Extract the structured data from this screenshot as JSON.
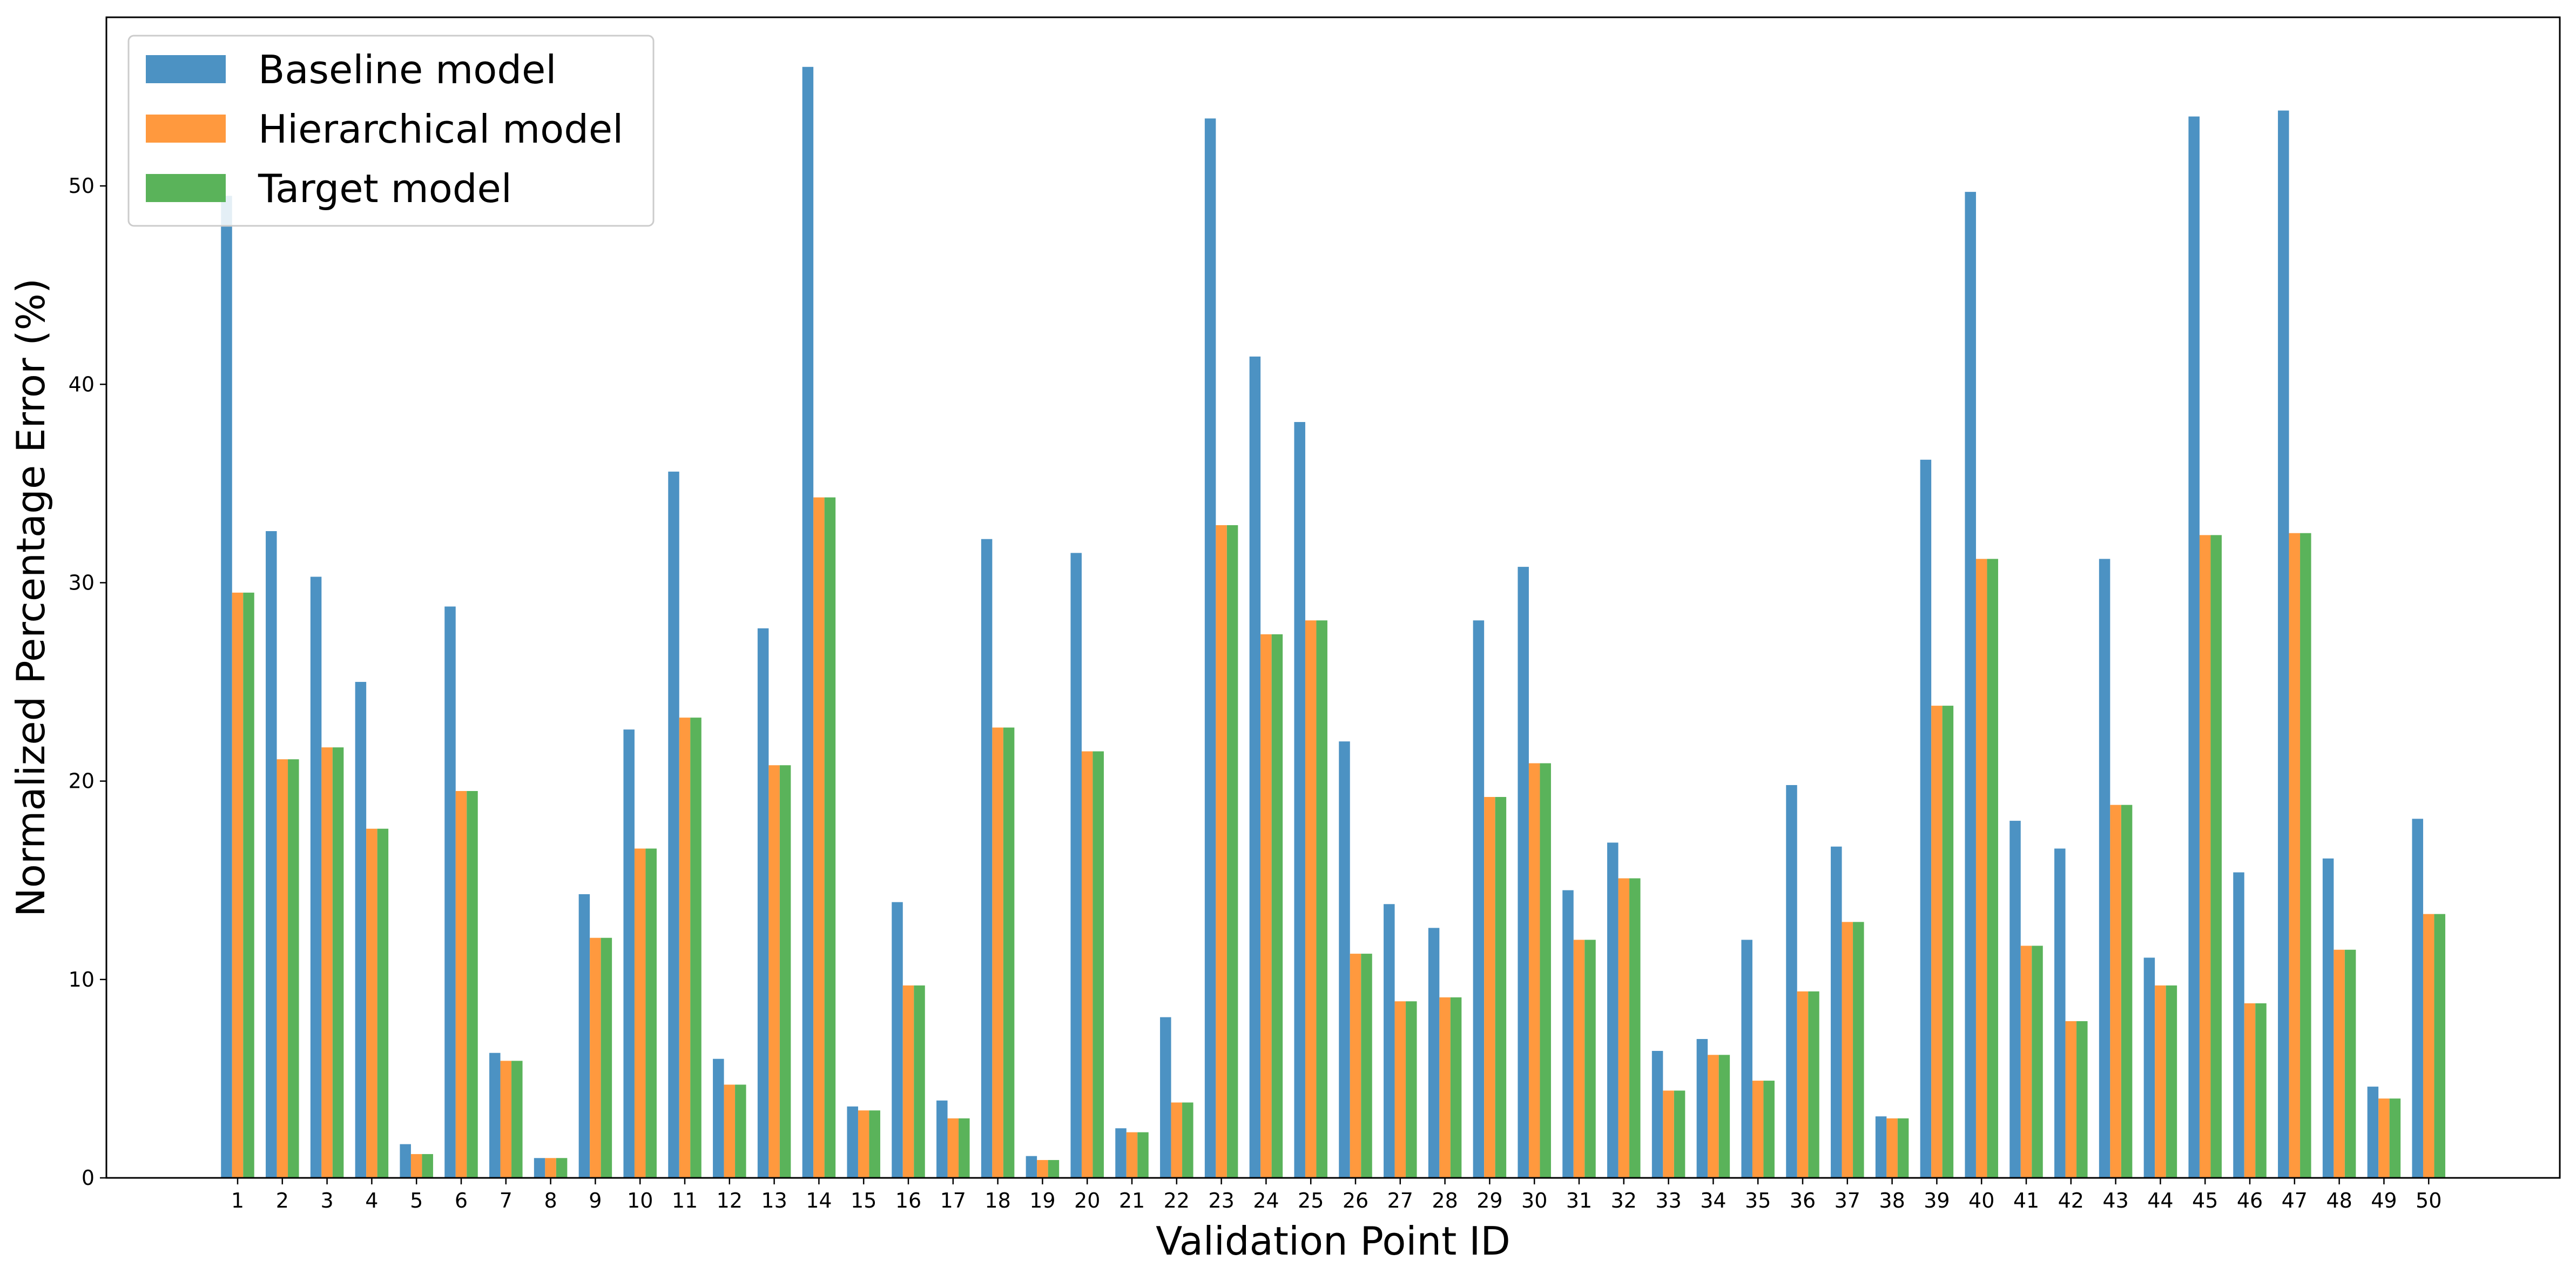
{
  "chart_data": {
    "type": "bar",
    "xlabel": "Validation Point ID",
    "ylabel": "Normalized Percentage Error (%)",
    "ylim": [
      0,
      58.5
    ],
    "yticks": [
      0,
      10,
      20,
      30,
      40,
      50
    ],
    "grid": false,
    "legend_position": "top-left",
    "categories": [
      "1",
      "2",
      "3",
      "4",
      "5",
      "6",
      "7",
      "8",
      "9",
      "10",
      "11",
      "12",
      "13",
      "14",
      "15",
      "16",
      "17",
      "18",
      "19",
      "20",
      "21",
      "22",
      "23",
      "24",
      "25",
      "26",
      "27",
      "28",
      "29",
      "30",
      "31",
      "32",
      "33",
      "34",
      "35",
      "36",
      "37",
      "38",
      "39",
      "40",
      "41",
      "42",
      "43",
      "44",
      "45",
      "46",
      "47",
      "48",
      "49",
      "50"
    ],
    "series": [
      {
        "name": "Baseline model",
        "color": "#4C92C3",
        "values": [
          49.5,
          32.6,
          30.3,
          25.0,
          1.7,
          28.8,
          6.3,
          1.0,
          14.3,
          22.6,
          35.6,
          6.0,
          27.7,
          56.0,
          3.6,
          13.9,
          3.9,
          32.2,
          1.1,
          31.5,
          2.5,
          8.1,
          53.4,
          41.4,
          38.1,
          22.0,
          13.8,
          12.6,
          28.1,
          30.8,
          14.5,
          16.9,
          6.4,
          7.0,
          12.0,
          19.8,
          16.7,
          3.1,
          36.2,
          49.7,
          18.0,
          16.6,
          31.2,
          11.1,
          53.5,
          15.4,
          53.8,
          16.1,
          4.6,
          18.1
        ]
      },
      {
        "name": "Hierarchical model",
        "color": "#FF993E",
        "values": [
          29.5,
          21.1,
          21.7,
          17.6,
          1.2,
          19.5,
          5.9,
          1.0,
          12.1,
          16.6,
          23.2,
          4.7,
          20.8,
          34.3,
          3.4,
          9.7,
          3.0,
          22.7,
          0.9,
          21.5,
          2.3,
          3.8,
          32.9,
          27.4,
          28.1,
          11.3,
          8.9,
          9.1,
          19.2,
          20.9,
          12.0,
          15.1,
          4.4,
          6.2,
          4.9,
          9.4,
          12.9,
          3.0,
          23.8,
          31.2,
          11.7,
          7.9,
          18.8,
          9.7,
          32.4,
          8.8,
          32.5,
          11.5,
          4.0,
          13.3
        ]
      },
      {
        "name": "Target model",
        "color": "#5AB35A",
        "values": [
          29.5,
          21.1,
          21.7,
          17.6,
          1.2,
          19.5,
          5.9,
          1.0,
          12.1,
          16.6,
          23.2,
          4.7,
          20.8,
          34.3,
          3.4,
          9.7,
          3.0,
          22.7,
          0.9,
          21.5,
          2.3,
          3.8,
          32.9,
          27.4,
          28.1,
          11.3,
          8.9,
          9.1,
          19.2,
          20.9,
          12.0,
          15.1,
          4.4,
          6.2,
          4.9,
          9.4,
          12.9,
          3.0,
          23.8,
          31.2,
          11.7,
          7.9,
          18.8,
          9.7,
          32.4,
          8.8,
          32.5,
          11.5,
          4.0,
          13.3
        ]
      }
    ]
  }
}
